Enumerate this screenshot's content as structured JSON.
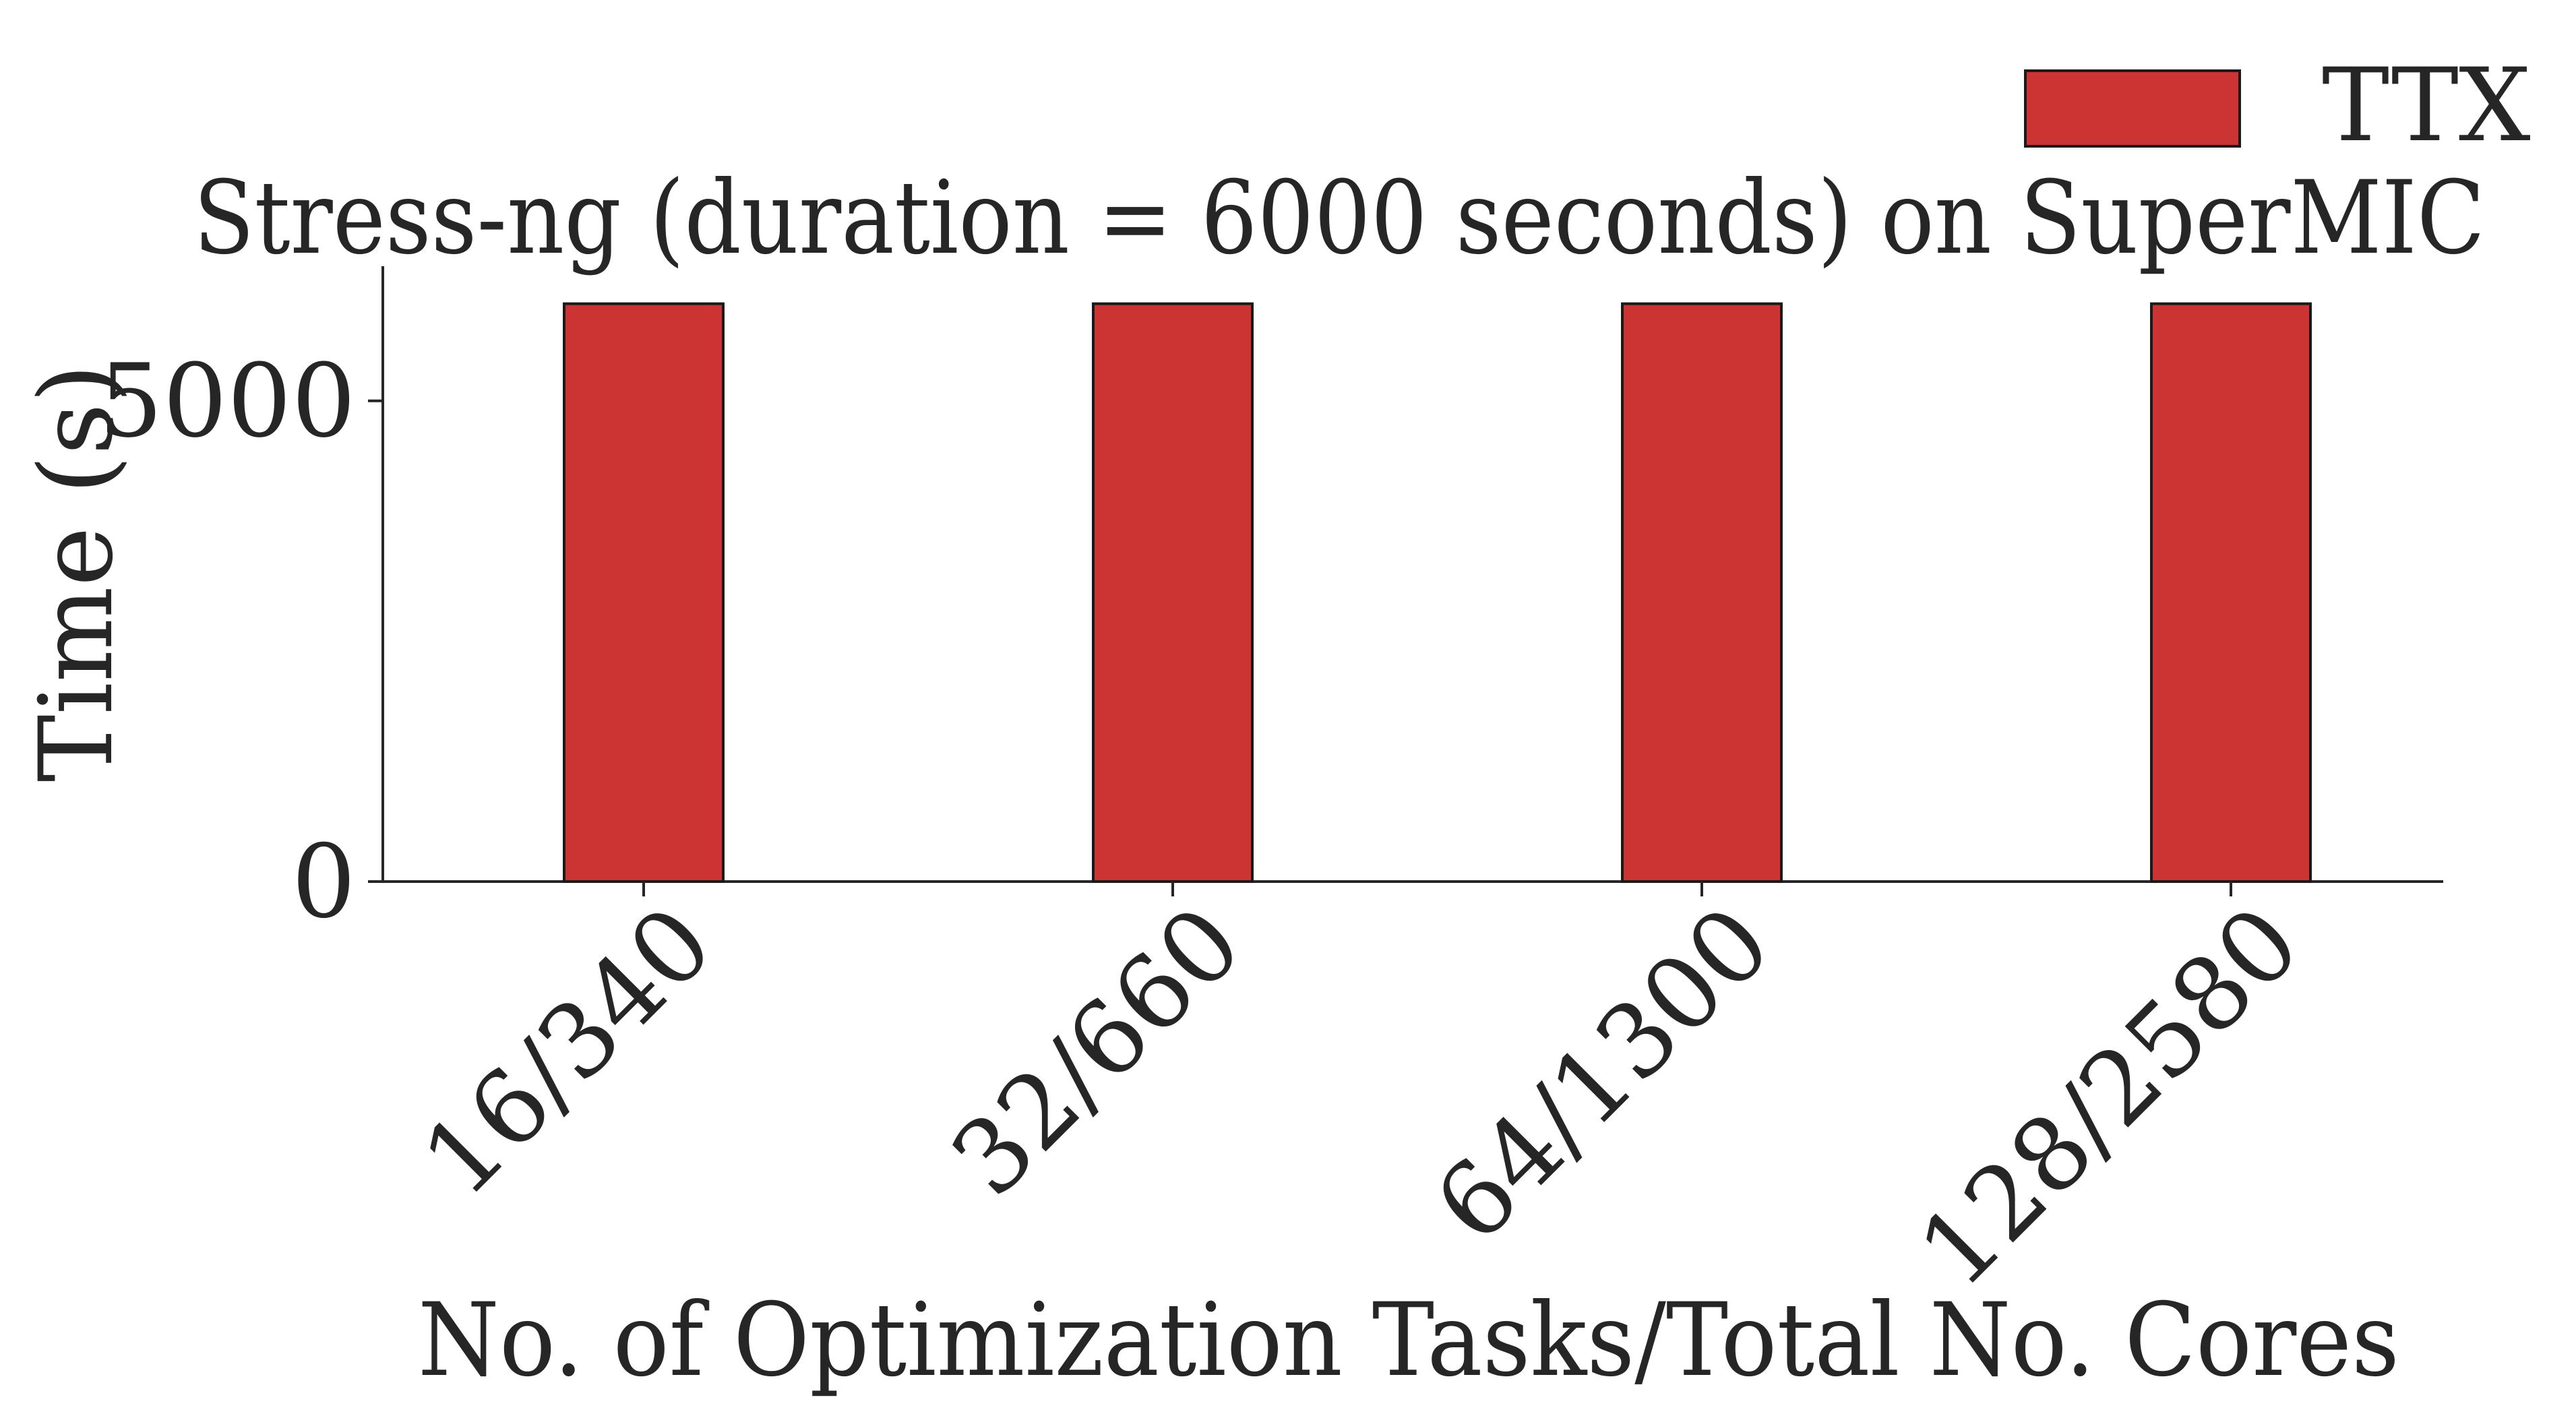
{
  "chart_data": {
    "type": "bar",
    "title": "Stress-ng (duration = 6000 seconds) on SuperMIC",
    "xlabel": "No. of Optimization Tasks/Total No. Cores",
    "ylabel": "Time (s)",
    "categories": [
      "16/340",
      "32/660",
      "64/1300",
      "128/2580"
    ],
    "series": [
      {
        "name": "TTX",
        "values": [
          6010,
          6010,
          6010,
          6010
        ],
        "color": "#cc3333"
      }
    ],
    "ylim": [
      0,
      6400
    ],
    "yticks": [
      0,
      5000
    ],
    "grid": false,
    "legend_position": "top-right"
  }
}
